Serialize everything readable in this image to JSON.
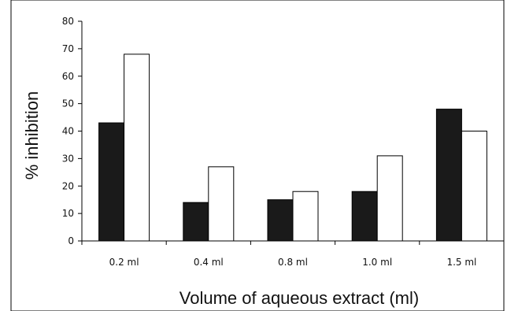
{
  "chart_data": {
    "type": "bar",
    "categories": [
      "0.2 ml",
      "0.4 ml",
      "0.8 ml",
      "1.0 ml",
      "1.5 ml"
    ],
    "series": [
      {
        "values": [
          43,
          14,
          15,
          18,
          48
        ],
        "color": "#1a1a1a"
      },
      {
        "values": [
          68,
          27,
          18,
          31,
          40
        ],
        "color": "#ffffff"
      }
    ],
    "xlabel": "Volume of aqueous extract (ml)",
    "ylabel": "% inhibition",
    "ylim": [
      0,
      80
    ],
    "yticks": [
      0,
      10,
      20,
      30,
      40,
      50,
      60,
      70,
      80
    ],
    "grid": false,
    "legend": "none"
  }
}
